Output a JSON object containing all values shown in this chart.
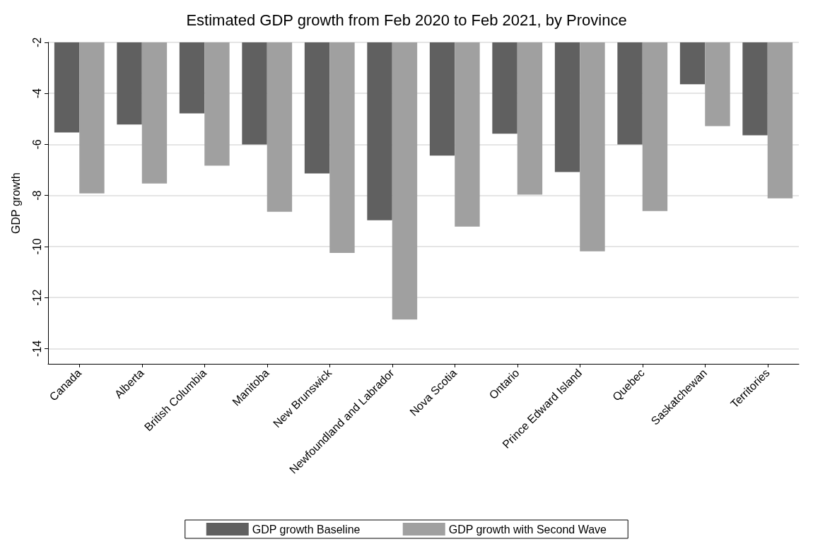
{
  "chart_data": {
    "type": "bar",
    "title": "Estimated GDP growth from Feb 2020 to Feb 2021, by Province",
    "ylabel": "GDP growth",
    "categories": [
      "Canada",
      "Alberta",
      "British Columbia",
      "Manitoba",
      "New Brunswick",
      "Newfoundland and Labrador",
      "Nova Scotia",
      "Ontario",
      "Prince Edward Island",
      "Quebec",
      "Saskatchewan",
      "Territories"
    ],
    "series": [
      {
        "name": "GDP growth Baseline",
        "color": "#606060",
        "values": [
          -5.53,
          -5.22,
          -4.78,
          -6.0,
          -7.14,
          -8.97,
          -6.44,
          -5.58,
          -7.08,
          -6.0,
          -3.64,
          -5.64
        ]
      },
      {
        "name": "GDP growth with Second Wave",
        "color": "#a0a0a0",
        "values": [
          -7.92,
          -7.53,
          -6.83,
          -8.64,
          -10.25,
          -12.86,
          -9.22,
          -7.97,
          -10.19,
          -8.61,
          -5.28,
          -8.11
        ]
      }
    ],
    "ylim": [
      -14.6,
      -2
    ],
    "yticks": [
      -14,
      -12,
      -10,
      -8,
      -6,
      -4,
      -2
    ],
    "grid": "y",
    "legend": "bottom"
  }
}
